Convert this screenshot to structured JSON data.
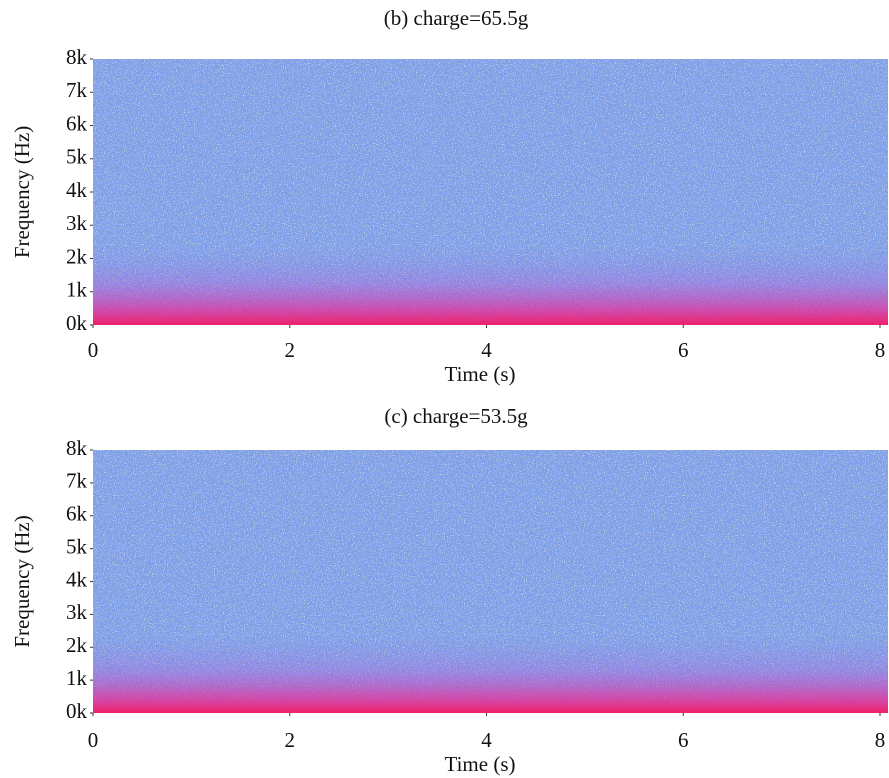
{
  "chart_data": [
    {
      "type": "spectrogram",
      "title": "(b) charge=65.5g",
      "x_label": "Time (s)",
      "y_label": "Frequency (Hz)",
      "xlim": [
        0,
        8
      ],
      "xticks": [
        0,
        2,
        4,
        6,
        8
      ],
      "ylim": [
        0,
        8000
      ],
      "yticks": [
        {
          "value": 0,
          "label": "0k"
        },
        {
          "value": 1000,
          "label": "1k"
        },
        {
          "value": 2000,
          "label": "2k"
        },
        {
          "value": 3000,
          "label": "3k"
        },
        {
          "value": 4000,
          "label": "4k"
        },
        {
          "value": 5000,
          "label": "5k"
        },
        {
          "value": 6000,
          "label": "6k"
        },
        {
          "value": 7000,
          "label": "7k"
        },
        {
          "value": 8000,
          "label": "8k"
        }
      ]
    },
    {
      "type": "spectrogram",
      "title": "(c) charge=53.5g",
      "x_label": "Time (s)",
      "y_label": "Frequency (Hz)",
      "xlim": [
        0,
        8
      ],
      "xticks": [
        0,
        2,
        4,
        6,
        8
      ],
      "ylim": [
        0,
        8000
      ],
      "yticks": [
        {
          "value": 0,
          "label": "0k"
        },
        {
          "value": 1000,
          "label": "1k"
        },
        {
          "value": 2000,
          "label": "2k"
        },
        {
          "value": 3000,
          "label": "3k"
        },
        {
          "value": 4000,
          "label": "4k"
        },
        {
          "value": 5000,
          "label": "5k"
        },
        {
          "value": 6000,
          "label": "6k"
        },
        {
          "value": 7000,
          "label": "7k"
        },
        {
          "value": 8000,
          "label": "8k"
        }
      ]
    }
  ]
}
